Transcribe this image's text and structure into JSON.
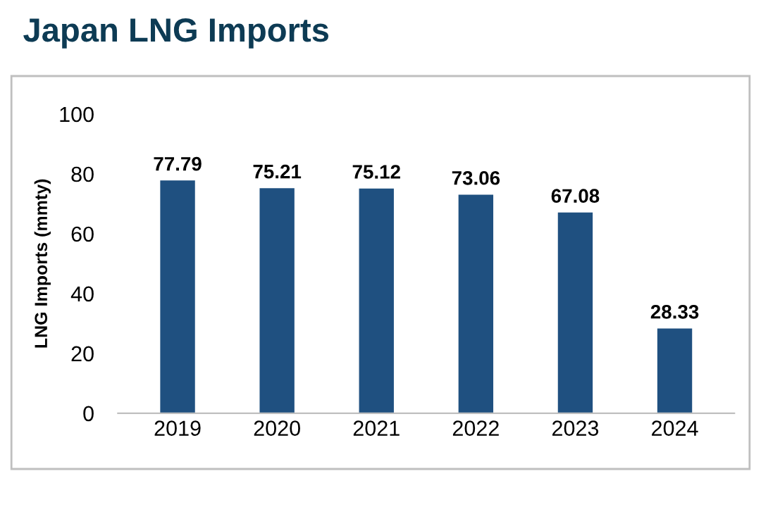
{
  "chart_data": {
    "type": "bar",
    "title": "Japan LNG Imports",
    "ylabel": "LNG Imports (mmty)",
    "categories": [
      "2019",
      "2020",
      "2021",
      "2022",
      "2023",
      "2024"
    ],
    "values": [
      77.79,
      75.21,
      75.12,
      73.06,
      67.08,
      28.33
    ],
    "color": "#1f5080",
    "ylim": [
      0,
      100
    ],
    "yticks": [
      0,
      20,
      40,
      60,
      80,
      100
    ],
    "grid": false,
    "data_labels": true
  }
}
